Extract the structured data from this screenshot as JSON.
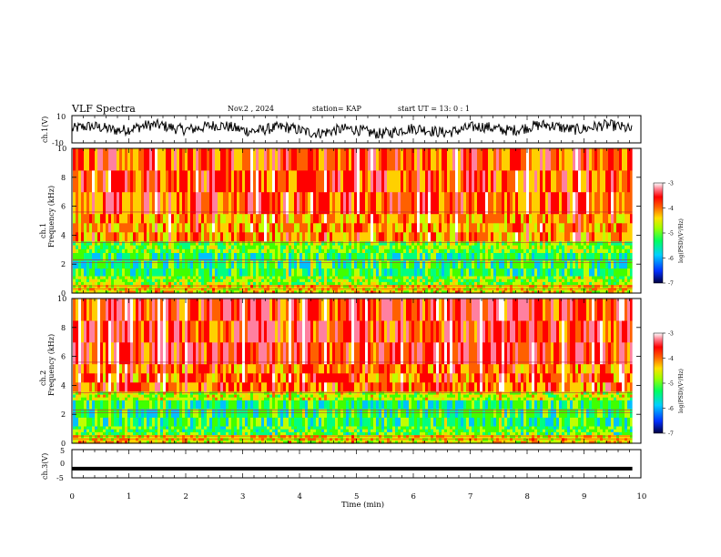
{
  "header": {
    "title": "VLF Spectra",
    "date": "Nov.2 , 2024",
    "station": "station= KAP",
    "start_ut": "start UT = 13: 0 : 1"
  },
  "colors": {
    "spectrogram_scale": [
      "#000080",
      "#0040ff",
      "#00c0ff",
      "#00ff80",
      "#40ff00",
      "#c0ff00",
      "#ffd000",
      "#ff6000",
      "#ff0000",
      "#ff80a0",
      "#ffffff"
    ]
  },
  "chart_data": [
    {
      "type": "line",
      "name": "ch1-waveform",
      "ylabel": "ch.1(V)",
      "ylim": [
        -10,
        10
      ],
      "ytick_labels": [
        "10",
        "-10"
      ],
      "x_range_min": [
        0,
        9.85
      ],
      "description_of_trace": "noisy waveform oscillating between about -8 and 8 V"
    },
    {
      "type": "heatmap",
      "name": "ch1-spectrogram",
      "ylabel_top": "ch.1",
      "ylabel": "Frequency (kHz)",
      "ylim": [
        0,
        10
      ],
      "ytick_labels": [
        "0",
        "2",
        "4",
        "6",
        "8",
        "10"
      ],
      "x_range_min": [
        0,
        9.85
      ],
      "colorbar": {
        "label": "log(PSD)(V²/Hz)",
        "range": [
          -7,
          -3
        ],
        "tick_labels": [
          "-3",
          "-4",
          "-5",
          "-6",
          "-7"
        ]
      },
      "bands_khz": [
        {
          "from": 0,
          "to": 0.6,
          "level": -4.8
        },
        {
          "from": 0.6,
          "to": 1.2,
          "level": -5.2
        },
        {
          "from": 1.2,
          "to": 2.8,
          "level": -5.6
        },
        {
          "from": 2.8,
          "to": 3.6,
          "level": -5.3
        },
        {
          "from": 3.6,
          "to": 5.5,
          "level": -4.5
        },
        {
          "from": 5.5,
          "to": 10,
          "level": -4.2
        }
      ]
    },
    {
      "type": "heatmap",
      "name": "ch2-spectrogram",
      "ylabel_top": "ch.2",
      "ylabel": "Frequency (kHz)",
      "ylim": [
        0,
        10
      ],
      "ytick_labels": [
        "0",
        "2",
        "4",
        "6",
        "8",
        "10"
      ],
      "x_range_min": [
        0,
        9.85
      ],
      "colorbar": {
        "label": "log(PSD)(V²/Hz)",
        "range": [
          -7,
          -3
        ],
        "tick_labels": [
          "-3",
          "-4",
          "-5",
          "-6",
          "-7"
        ]
      },
      "bands_khz": [
        {
          "from": 0,
          "to": 0.6,
          "level": -4.8
        },
        {
          "from": 0.6,
          "to": 1.2,
          "level": -5.4
        },
        {
          "from": 1.2,
          "to": 3.0,
          "level": -5.6
        },
        {
          "from": 3.0,
          "to": 3.6,
          "level": -5.0
        },
        {
          "from": 3.6,
          "to": 5.5,
          "level": -4.3
        },
        {
          "from": 5.5,
          "to": 10,
          "level": -4.0
        }
      ]
    },
    {
      "type": "line",
      "name": "ch3-trace",
      "ylabel": "ch.3(V)",
      "ylim": [
        -5,
        5
      ],
      "ytick_labels": [
        "5",
        "0",
        "-5"
      ],
      "x_range_min": [
        0,
        9.85
      ],
      "y_values_approx": [
        -1.8,
        -1.1
      ]
    }
  ],
  "xaxis": {
    "label": "Time (min)",
    "range": [
      0,
      10
    ],
    "tick_labels": [
      "0",
      "1",
      "2",
      "3",
      "4",
      "5",
      "6",
      "7",
      "8",
      "9",
      "10"
    ]
  }
}
